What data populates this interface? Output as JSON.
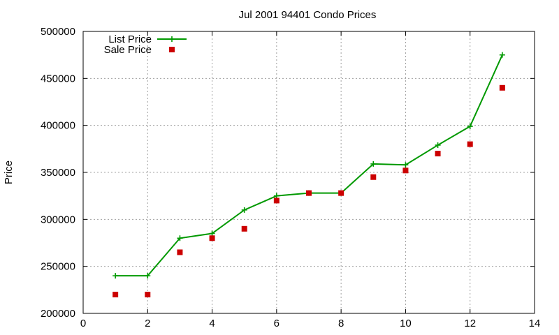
{
  "chart_data": {
    "type": "line",
    "title": "Jul 2001 94401 Condo Prices",
    "xlabel": "",
    "ylabel": "Price",
    "xlim": [
      0,
      14
    ],
    "ylim": [
      200000,
      500000
    ],
    "xticks": [
      0,
      2,
      4,
      6,
      8,
      10,
      12,
      14
    ],
    "yticks": [
      200000,
      250000,
      300000,
      350000,
      400000,
      450000,
      500000
    ],
    "grid": true,
    "legend_position": "top-left",
    "series": [
      {
        "name": "List Price",
        "style": "line+cross",
        "color": "#009900",
        "x": [
          1,
          2,
          3,
          4,
          5,
          6,
          7,
          8,
          9,
          10,
          11,
          12,
          13
        ],
        "y": [
          240000,
          240000,
          280000,
          285000,
          310000,
          325000,
          328000,
          328000,
          359000,
          358000,
          379000,
          399000,
          475000
        ]
      },
      {
        "name": "Sale Price",
        "style": "square",
        "color": "#cc0000",
        "x": [
          1,
          2,
          3,
          4,
          5,
          6,
          7,
          8,
          9,
          10,
          11,
          12,
          13
        ],
        "y": [
          220000,
          220000,
          265000,
          280000,
          290000,
          320000,
          328000,
          328000,
          345000,
          352000,
          370000,
          380000,
          440000
        ]
      }
    ]
  }
}
